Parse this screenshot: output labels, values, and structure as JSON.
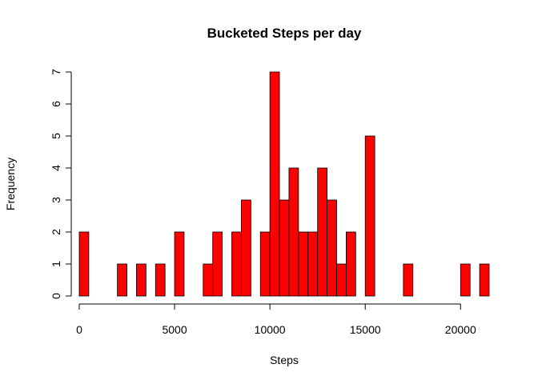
{
  "chart_data": {
    "type": "bar",
    "title": "Bucketed Steps per day",
    "xlabel": "Steps",
    "ylabel": "Frequency",
    "bin_width": 500,
    "bin_start": 0,
    "xlim": [
      0,
      21500
    ],
    "ylim": [
      0,
      7
    ],
    "x_ticks": [
      0,
      5000,
      10000,
      15000,
      20000
    ],
    "x_tick_labels": [
      "0",
      "5000",
      "10000",
      "15000",
      "20000"
    ],
    "y_ticks": [
      0,
      1,
      2,
      3,
      4,
      5,
      6,
      7
    ],
    "y_tick_labels": [
      "0",
      "1",
      "2",
      "3",
      "4",
      "5",
      "6",
      "7"
    ],
    "values": [
      2,
      0,
      0,
      0,
      1,
      0,
      1,
      0,
      1,
      0,
      2,
      0,
      0,
      1,
      2,
      0,
      2,
      3,
      0,
      2,
      7,
      3,
      4,
      2,
      2,
      4,
      3,
      1,
      2,
      0,
      5,
      0,
      0,
      0,
      1,
      0,
      0,
      0,
      0,
      0,
      1,
      0,
      1
    ],
    "bar_color": "#ff0000",
    "grid": false
  }
}
